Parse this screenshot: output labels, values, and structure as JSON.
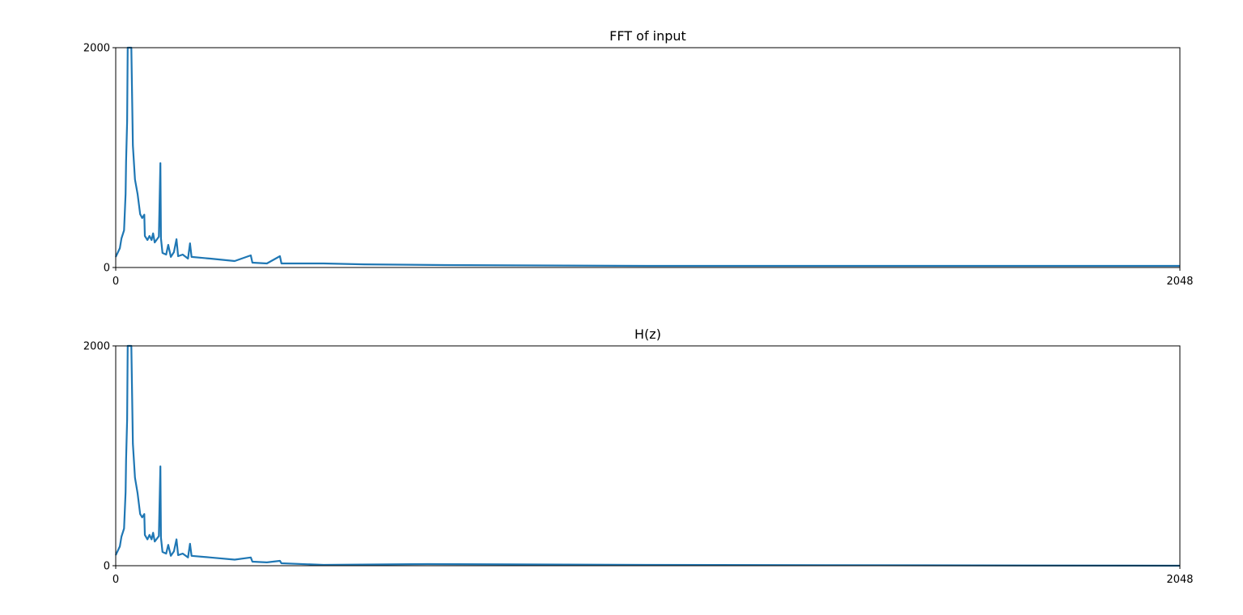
{
  "chart_data": [
    {
      "type": "line",
      "title": "FFT of input",
      "x": [
        0,
        8,
        11,
        16,
        19,
        20,
        22,
        23,
        30,
        33,
        37,
        42,
        47,
        51,
        55,
        56,
        61,
        65,
        69,
        72,
        75,
        83,
        86,
        87,
        90,
        97,
        101,
        106,
        112,
        117,
        120,
        129,
        139,
        143,
        146,
        182,
        229,
        260,
        263,
        291,
        316,
        319,
        400,
        478,
        634,
        1023,
        1514,
        2048
      ],
      "values": [
        96,
        176,
        265,
        338,
        670,
        963,
        1330,
        2000,
        2000,
        1110,
        800,
        670,
        485,
        450,
        480,
        287,
        250,
        287,
        250,
        310,
        228,
        280,
        950,
        265,
        132,
        118,
        206,
        96,
        140,
        257,
        103,
        118,
        81,
        220,
        96,
        81,
        59,
        110,
        44,
        37,
        103,
        37,
        37,
        29,
        22,
        15,
        15,
        15
      ],
      "color": "#1f77b4",
      "xlim": [
        0,
        2048
      ],
      "ylim": [
        0,
        2000
      ],
      "xticks": [
        0,
        2048
      ],
      "yticks": [
        0,
        2000
      ]
    },
    {
      "type": "line",
      "title": "H(z)",
      "x": [
        0,
        8,
        11,
        16,
        19,
        20,
        22,
        23,
        30,
        33,
        37,
        42,
        47,
        51,
        55,
        56,
        61,
        65,
        69,
        72,
        75,
        83,
        86,
        87,
        90,
        97,
        101,
        106,
        112,
        117,
        120,
        129,
        139,
        143,
        146,
        182,
        229,
        260,
        263,
        291,
        316,
        319,
        400,
        600,
        1023,
        2048
      ],
      "values": [
        96,
        176,
        265,
        338,
        670,
        963,
        1330,
        2000,
        2000,
        1110,
        800,
        660,
        470,
        440,
        470,
        280,
        240,
        280,
        240,
        300,
        220,
        270,
        904,
        255,
        125,
        110,
        190,
        90,
        130,
        240,
        96,
        110,
        75,
        200,
        90,
        75,
        55,
        75,
        37,
        30,
        44,
        22,
        7,
        15,
        7,
        0
      ],
      "color": "#1f77b4",
      "xlim": [
        0,
        2048
      ],
      "ylim": [
        0,
        2000
      ],
      "xticks": [
        0,
        2048
      ],
      "yticks": [
        0,
        2000
      ]
    }
  ]
}
